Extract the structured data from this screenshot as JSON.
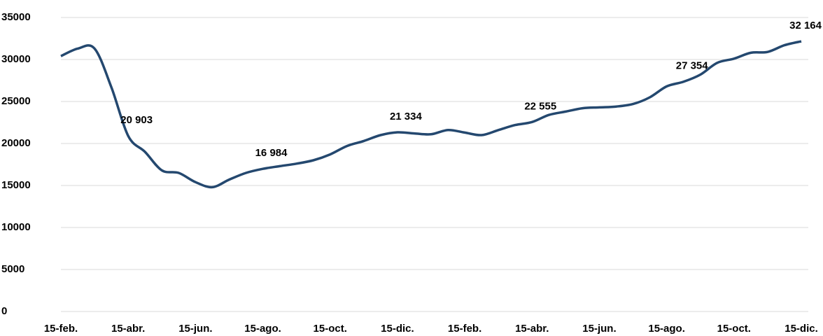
{
  "chart_data": {
    "type": "line",
    "categories": [
      "15-feb.",
      null,
      null,
      null,
      "15-abr.",
      null,
      null,
      null,
      "15-jun.",
      null,
      null,
      null,
      "15-ago.",
      null,
      null,
      null,
      "15-oct.",
      null,
      null,
      null,
      "15-dic.",
      null,
      null,
      null,
      "15-feb.",
      null,
      null,
      null,
      "15-abr.",
      null,
      null,
      null,
      "15-jun.",
      null,
      null,
      null,
      "15-ago.",
      null,
      null,
      null,
      "15-oct.",
      null,
      null,
      null,
      "15-dic."
    ],
    "values": [
      30400,
      31300,
      31300,
      26700,
      20903,
      19000,
      16800,
      16500,
      15400,
      14800,
      15700,
      16500,
      16984,
      17300,
      17600,
      18000,
      18700,
      19700,
      20300,
      21000,
      21334,
      21200,
      21100,
      21600,
      21300,
      21000,
      21600,
      22200,
      22555,
      23400,
      23800,
      24200,
      24300,
      24400,
      24700,
      25500,
      26800,
      27354,
      28200,
      29600,
      30100,
      30800,
      30900,
      31700,
      32164
    ],
    "value_labels": [
      null,
      null,
      null,
      null,
      "20 903",
      null,
      null,
      null,
      null,
      null,
      null,
      null,
      "16 984",
      null,
      null,
      null,
      null,
      null,
      null,
      null,
      "21 334",
      null,
      null,
      null,
      null,
      null,
      null,
      null,
      "22 555",
      null,
      null,
      null,
      null,
      null,
      null,
      null,
      null,
      "27 354",
      null,
      null,
      null,
      null,
      null,
      null,
      "32 164"
    ],
    "color": "#24486f",
    "ylim": [
      0,
      35000
    ],
    "yticks": [
      0,
      5000,
      10000,
      15000,
      20000,
      25000,
      30000,
      35000
    ],
    "grid": true
  }
}
